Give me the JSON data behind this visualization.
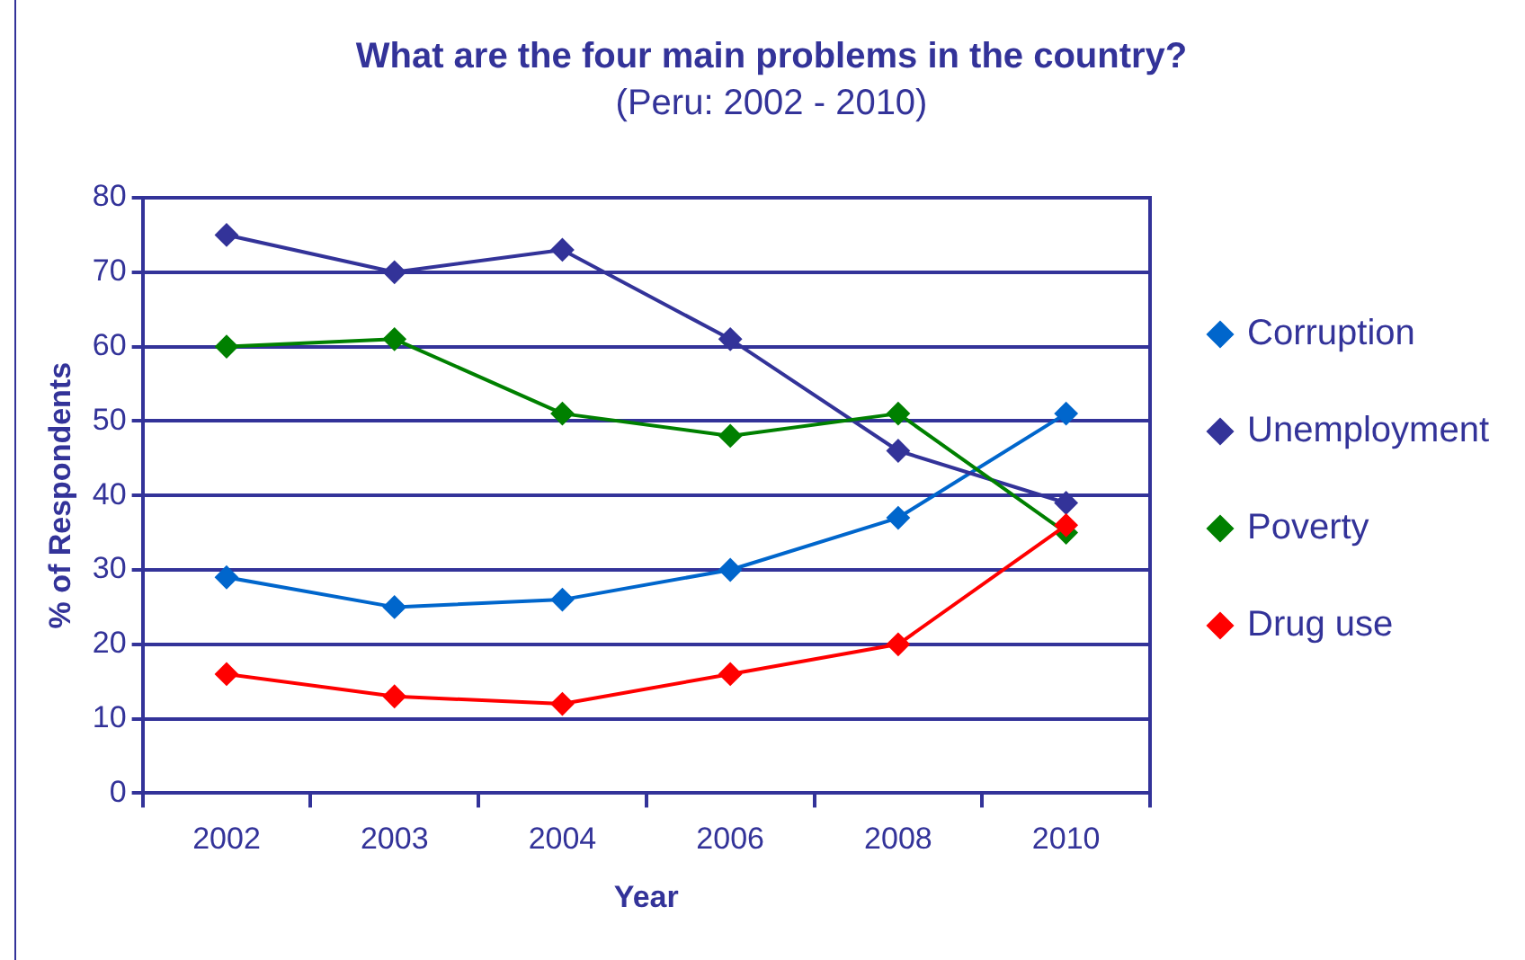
{
  "chart_data": {
    "type": "line",
    "title": "What are the four main problems in the country?",
    "subtitle": "(Peru: 2002 - 2010)",
    "xlabel": "Year",
    "ylabel": "% of Respondents",
    "categories": [
      "2002",
      "2003",
      "2004",
      "2006",
      "2008",
      "2010"
    ],
    "series": [
      {
        "name": "Corruption",
        "color": "#0066cc",
        "values": [
          29,
          25,
          26,
          30,
          37,
          51
        ]
      },
      {
        "name": "Unemployment",
        "color": "#333399",
        "values": [
          75,
          70,
          73,
          61,
          46,
          39
        ]
      },
      {
        "name": "Poverty",
        "color": "#008000",
        "values": [
          60,
          61,
          51,
          48,
          51,
          35
        ]
      },
      {
        "name": "Drug use",
        "color": "#ff0000",
        "values": [
          16,
          13,
          12,
          16,
          20,
          36
        ]
      }
    ],
    "ylim": [
      0,
      80
    ],
    "yticks": [
      0,
      10,
      20,
      30,
      40,
      50,
      60,
      70,
      80
    ],
    "grid": "y",
    "legend": "right",
    "marker": "diamond",
    "line_style": "solid"
  }
}
